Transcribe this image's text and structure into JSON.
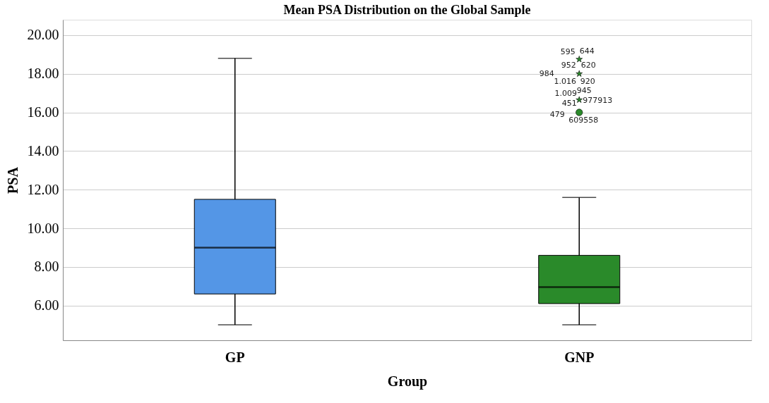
{
  "chart_data": {
    "type": "box",
    "title": "Mean PSA Distribution on the Global Sample",
    "xlabel": "Group",
    "ylabel": "PSA",
    "categories": [
      "GP",
      "GNP"
    ],
    "colors": [
      "#5496e6",
      "#2a8a2a"
    ],
    "boxes": [
      {
        "low": 5.0,
        "q1": 6.6,
        "median": 9.0,
        "q3": 11.5,
        "high": 18.8
      },
      {
        "low": 5.0,
        "q1": 6.1,
        "median": 6.95,
        "q3": 8.6,
        "high": 11.6,
        "outliers": [
          18.75,
          18.0,
          16.65,
          16.0
        ]
      }
    ],
    "ylim": [
      4.2,
      20.8
    ],
    "yticks": [
      {
        "value": 6,
        "label": "6.00"
      },
      {
        "value": 8,
        "label": "8.00"
      },
      {
        "value": 10,
        "label": "10.00"
      },
      {
        "value": 12,
        "label": "12.00"
      },
      {
        "value": 14,
        "label": "14.00"
      },
      {
        "value": 16,
        "label": "16.00"
      },
      {
        "value": 18,
        "label": "18.00"
      },
      {
        "value": 20,
        "label": "20.00"
      }
    ],
    "grid": "y",
    "annotations": [
      "595",
      "644",
      "952",
      "620",
      "984",
      "1.016",
      "920",
      "1.009",
      "945",
      "451",
      "977913",
      "479",
      "609558"
    ]
  }
}
